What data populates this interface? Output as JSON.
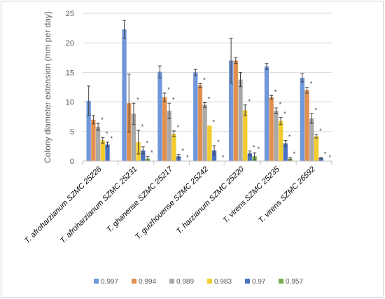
{
  "chart_data": {
    "type": "bar",
    "ylabel": "Colony diameter extension (mm per day)",
    "ylim": [
      0,
      25
    ],
    "yticks": [
      0,
      5,
      10,
      15,
      20,
      25
    ],
    "categories": [
      "T. afroharzianum  SZMC 25228",
      "T. afroharzianum  SZMC 25231",
      "T. ghanense SZMC 25217",
      "T. guizhouense  SZMC 25242",
      "T. harzianum SZMC 25220",
      "T. virens SZMC 25235",
      "T. virens SZMC 26592"
    ],
    "legend_position": "bottom",
    "grid": true,
    "significance_marker": "*",
    "series": [
      {
        "name": "0.997",
        "color": "#6f97d9",
        "values": [
          10.2,
          22.3,
          15.1,
          15.0,
          17.0,
          16.0,
          14.1
        ],
        "errors": [
          2.5,
          1.5,
          1.0,
          0.5,
          3.8,
          0.5,
          0.7
        ],
        "significant": [
          false,
          false,
          false,
          false,
          false,
          false,
          false
        ]
      },
      {
        "name": "0.994",
        "color": "#e28f4e",
        "values": [
          7.0,
          9.8,
          10.8,
          12.8,
          17.0,
          10.8,
          12.0
        ],
        "errors": [
          0.7,
          4.9,
          0.7,
          0.3,
          0.5,
          0.3,
          0.5
        ],
        "significant": [
          false,
          false,
          true,
          true,
          false,
          true,
          true
        ]
      },
      {
        "name": "0.989",
        "color": "#a9a9a9",
        "values": [
          5.8,
          8.0,
          8.5,
          9.5,
          13.8,
          8.5,
          7.2
        ],
        "errors": [
          0.6,
          1.8,
          1.3,
          0.4,
          1.2,
          0.5,
          0.8
        ],
        "significant": [
          true,
          true,
          true,
          true,
          false,
          true,
          true
        ]
      },
      {
        "name": "0.983",
        "color": "#f2cc2e",
        "values": [
          3.5,
          3.2,
          4.6,
          6.0,
          8.6,
          6.8,
          4.2
        ],
        "errors": [
          0.5,
          2.0,
          0.5,
          0.0,
          0.9,
          0.6,
          0.3
        ],
        "significant": [
          true,
          true,
          true,
          true,
          true,
          true,
          true
        ]
      },
      {
        "name": "0.97",
        "color": "#4a72c4",
        "values": [
          2.8,
          1.8,
          0.8,
          1.8,
          1.3,
          3.0,
          0.5
        ],
        "errors": [
          0.4,
          0.6,
          0.3,
          0.8,
          0.4,
          0.5,
          0.1
        ],
        "significant": [
          true,
          true,
          true,
          true,
          true,
          true,
          true
        ]
      },
      {
        "name": "0.957",
        "color": "#76ab48",
        "values": [
          0.0,
          0.4,
          0.0,
          0.0,
          0.8,
          0.4,
          0.0
        ],
        "errors": [
          0.0,
          0.4,
          0.0,
          0.0,
          0.6,
          0.2,
          0.0
        ],
        "significant": [
          false,
          true,
          true,
          true,
          true,
          true,
          true
        ]
      }
    ]
  }
}
